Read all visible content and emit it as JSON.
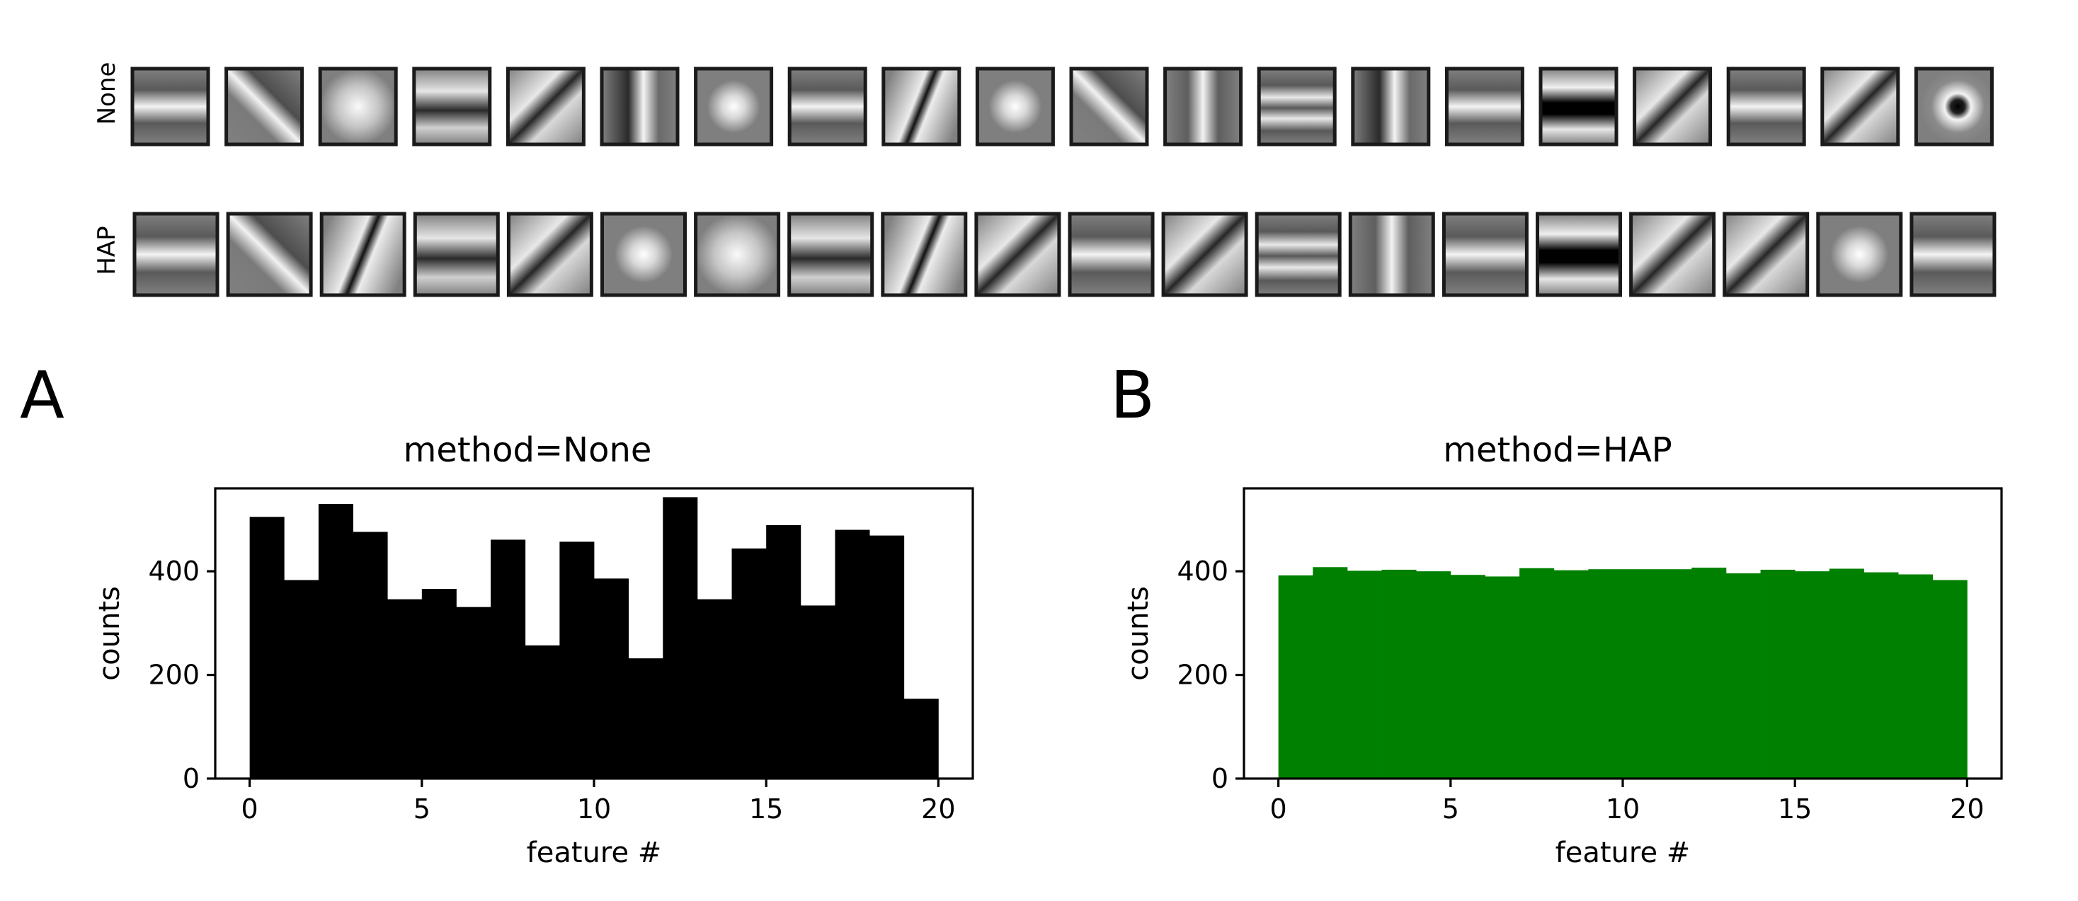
{
  "filters": {
    "rows": [
      {
        "label": "None",
        "label_color": "#000000",
        "tiles": [
          "h-bar",
          "diag-up",
          "blob",
          "h-dark",
          "diag-down",
          "v-diag",
          "small-dot",
          "h-bar",
          "diag-steep",
          "small-dot",
          "diag-up",
          "v-bar",
          "h-stripes",
          "v-diag-down",
          "h-bar",
          "h-dark-strong",
          "diag-down",
          "h-bar",
          "diag-down",
          "center-dot-dark"
        ]
      },
      {
        "label": "HAP",
        "label_color": "#008000",
        "tiles": [
          "h-bar",
          "diag-up",
          "diag-steep",
          "h-dark",
          "diag-down",
          "small-dot",
          "blob",
          "h-dark",
          "diag-steep",
          "diag-down",
          "h-bar",
          "diag-down",
          "h-stripes",
          "v-bar",
          "h-bar",
          "h-dark-strong",
          "diag-down",
          "diag-down",
          "small-dot",
          "h-bar"
        ]
      }
    ]
  },
  "panels": [
    {
      "letter": "A"
    },
    {
      "letter": "B"
    }
  ],
  "chart_data": [
    {
      "type": "bar",
      "title": "method=None",
      "xlabel": "feature #",
      "ylabel": "counts",
      "color": "#000000",
      "bin_edges": [
        0,
        1,
        2,
        3,
        4,
        5,
        6,
        7,
        8,
        9,
        10,
        11,
        12,
        13,
        14,
        15,
        16,
        17,
        18,
        19,
        20
      ],
      "values": [
        505,
        383,
        530,
        476,
        346,
        366,
        331,
        461,
        257,
        457,
        386,
        232,
        543,
        346,
        444,
        489,
        334,
        480,
        469,
        154
      ],
      "xlim": [
        -1,
        21
      ],
      "ylim": [
        0,
        560
      ],
      "xticks": [
        "0",
        "5",
        "10",
        "15",
        "20"
      ],
      "yticks": [
        "0",
        "200",
        "400"
      ]
    },
    {
      "type": "bar",
      "title": "method=HAP",
      "xlabel": "feature #",
      "ylabel": "counts",
      "color": "#008000",
      "bin_edges": [
        0,
        1,
        2,
        3,
        4,
        5,
        6,
        7,
        8,
        9,
        10,
        11,
        12,
        13,
        14,
        15,
        16,
        17,
        18,
        19,
        20
      ],
      "values": [
        392,
        408,
        401,
        403,
        400,
        393,
        390,
        406,
        402,
        404,
        404,
        404,
        407,
        396,
        403,
        400,
        405,
        398,
        394,
        383
      ],
      "xlim": [
        -1,
        21
      ],
      "ylim": [
        0,
        560
      ],
      "xticks": [
        "0",
        "5",
        "10",
        "15",
        "20"
      ],
      "yticks": [
        "0",
        "200",
        "400"
      ]
    }
  ]
}
